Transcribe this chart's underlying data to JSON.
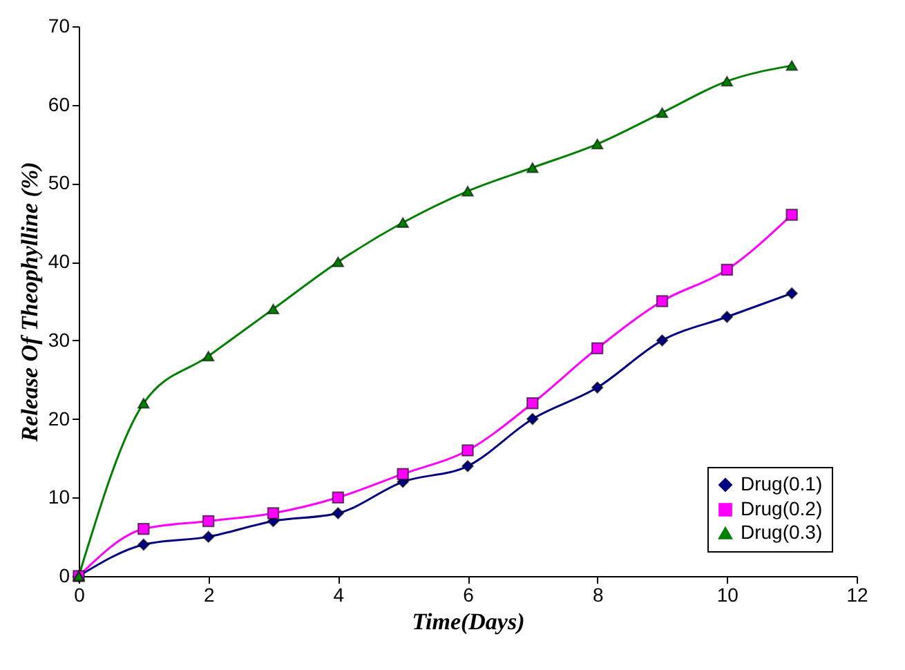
{
  "chart_data": {
    "type": "line",
    "xlabel": "Time(Days)",
    "ylabel": "Release Of Theophylline (%)",
    "x": [
      0,
      1,
      2,
      3,
      4,
      5,
      6,
      7,
      8,
      9,
      10,
      11
    ],
    "series": [
      {
        "name": "Drug(0.1)",
        "color": "#000080",
        "marker": "diamond",
        "values": [
          0,
          4,
          5,
          7,
          8,
          12,
          14,
          20,
          24,
          30,
          33,
          36
        ]
      },
      {
        "name": "Drug(0.2)",
        "color": "#ff00ff",
        "marker": "square",
        "values": [
          0,
          6,
          7,
          8,
          10,
          13,
          16,
          22,
          29,
          35,
          39,
          46
        ]
      },
      {
        "name": "Drug(0.3)",
        "color": "#008000",
        "marker": "triangle",
        "values": [
          0,
          22,
          28,
          34,
          40,
          45,
          49,
          52,
          55,
          59,
          63,
          65
        ]
      }
    ],
    "xlim": [
      0,
      12
    ],
    "xticks": [
      0,
      2,
      4,
      6,
      8,
      10,
      12
    ],
    "ylim": [
      0,
      70
    ],
    "yticks": [
      0,
      10,
      20,
      30,
      40,
      50,
      60,
      70
    ],
    "grid": false,
    "legend": "bottom right",
    "line_style": "solid"
  }
}
